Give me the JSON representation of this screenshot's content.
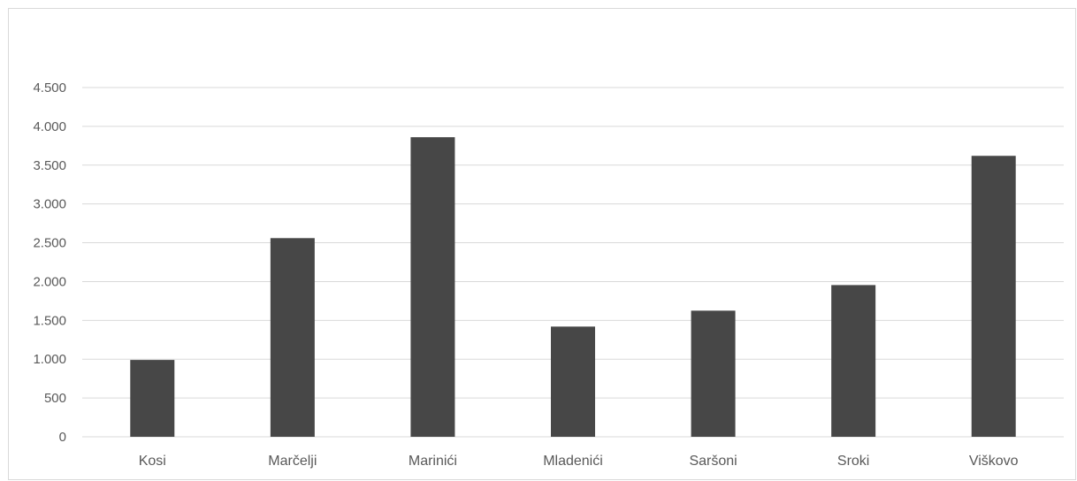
{
  "chart_data": {
    "type": "bar",
    "categories": [
      "Kosi",
      "Marčelji",
      "Marinići",
      "Mladenići",
      "Saršoni",
      "Sroki",
      "Viškovo"
    ],
    "values": [
      990,
      2560,
      3860,
      1420,
      1625,
      1955,
      3620
    ],
    "ylim": [
      0,
      4500
    ],
    "yticks": [
      0,
      500,
      1000,
      1500,
      2000,
      2500,
      3000,
      3500,
      4000,
      4500
    ],
    "ytick_labels": [
      "0",
      "500",
      "1.000",
      "1.500",
      "2.000",
      "2.500",
      "3.000",
      "3.500",
      "4.000",
      "4.500"
    ],
    "grid": true,
    "bar_color": "#474747",
    "grid_color": "#d9d9d9"
  }
}
